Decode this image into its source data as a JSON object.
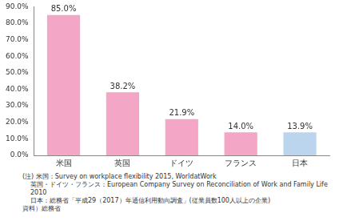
{
  "chart_data": {
    "type": "bar",
    "categories": [
      "米国",
      "英国",
      "ドイツ",
      "フランス",
      "日本"
    ],
    "values": [
      85.0,
      38.2,
      21.9,
      14.0,
      13.9
    ],
    "value_labels": [
      "85.0%",
      "38.2%",
      "21.9%",
      "14.0%",
      "13.9%"
    ],
    "data_labels": true,
    "colors": [
      "#f4a6c6",
      "#f4a6c6",
      "#f4a6c6",
      "#f4a6c6",
      "#bcd5ef"
    ],
    "ylim": [
      0,
      90
    ],
    "yticks": [
      {
        "value": 0,
        "label": "0.0%"
      },
      {
        "value": 10,
        "label": "10.0%"
      },
      {
        "value": 20,
        "label": "20.0%"
      },
      {
        "value": 30,
        "label": "30.0%"
      },
      {
        "value": 40,
        "label": "40.0%"
      },
      {
        "value": 50,
        "label": "50.0%"
      },
      {
        "value": 60,
        "label": "60.0%"
      },
      {
        "value": 70,
        "label": "70.0%"
      },
      {
        "value": 80,
        "label": "80.0%"
      },
      {
        "value": 90,
        "label": "90.0%"
      }
    ],
    "grid": false,
    "annotations": [
      "(注) 米国：Survey on workplace flexibility 2015, WorldatWork",
      "英国・ドイツ・フランス：European Company Survey on Reconciliation of Work and Family Life 2010",
      "日本：総務省「平成29（2017）年通信利用動向調査」(従業員数100人以上の企業)",
      "資料）総務省"
    ]
  }
}
